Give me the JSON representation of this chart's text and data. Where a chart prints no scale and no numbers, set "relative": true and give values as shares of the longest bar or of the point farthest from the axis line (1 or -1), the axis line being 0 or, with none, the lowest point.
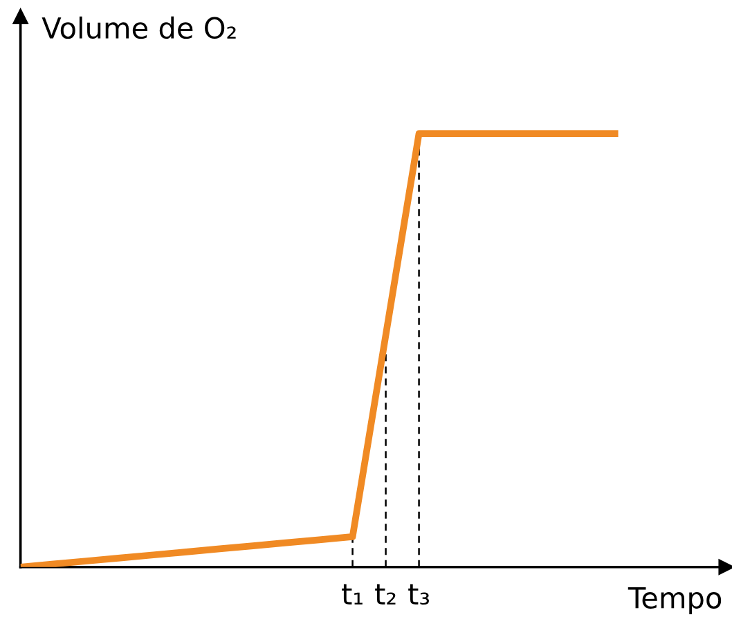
{
  "chart_data": {
    "type": "line",
    "relative": true,
    "xlabel": "Tempo",
    "ylabel": "Volume de O₂",
    "categories": [
      null,
      null,
      null,
      null,
      null,
      null,
      null,
      null,
      null,
      null,
      "t₁",
      "t₂",
      "t₃",
      null,
      null,
      null,
      null,
      null,
      null
    ],
    "series": [
      {
        "color": "#f08a24",
        "values": [
          0,
          0.007,
          0.014,
          0.021,
          0.028,
          0.035,
          0.042,
          0.049,
          0.056,
          0.063,
          0.07,
          0.535,
          1,
          1,
          1,
          1,
          1,
          1,
          1
        ]
      }
    ],
    "grid": false,
    "legend": false,
    "marker": "none",
    "line_style": "solid"
  }
}
